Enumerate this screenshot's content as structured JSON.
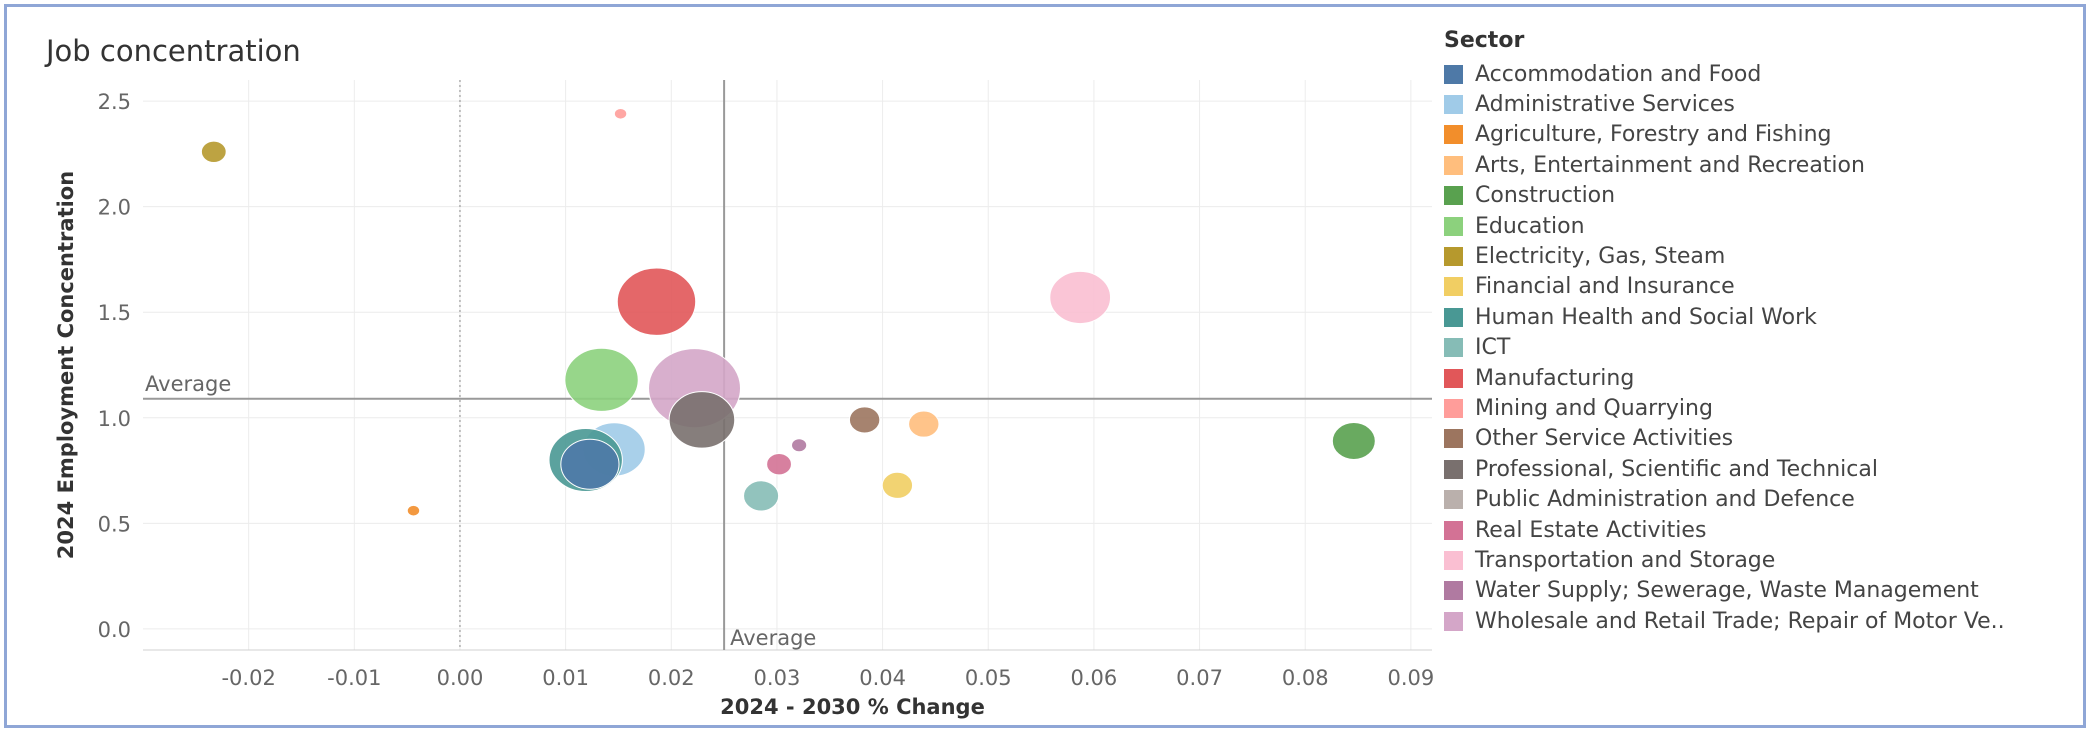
{
  "title": "Job concentration",
  "chart_data": {
    "type": "scatter",
    "xlabel": "2024 - 2030 % Change",
    "ylabel": "2024 Employment Concentration",
    "xlim": [
      -0.03,
      0.092
    ],
    "ylim": [
      -0.1,
      2.6
    ],
    "xticks": [
      -0.02,
      -0.01,
      0.0,
      0.01,
      0.02,
      0.03,
      0.04,
      0.05,
      0.06,
      0.07,
      0.08,
      0.09
    ],
    "xtick_labels": [
      "-0.02",
      "-0.01",
      "0.00",
      "0.01",
      "0.02",
      "0.03",
      "0.04",
      "0.05",
      "0.06",
      "0.07",
      "0.08",
      "0.09"
    ],
    "yticks": [
      0.0,
      0.5,
      1.0,
      1.5,
      2.0,
      2.5
    ],
    "ytick_labels": [
      "0.0",
      "0.5",
      "1.0",
      "1.5",
      "2.0",
      "2.5"
    ],
    "grid": true,
    "zero_line_x": 0.0,
    "average": {
      "x": 0.025,
      "y": 1.09,
      "label_x": "Average",
      "label_y": "Average"
    },
    "legend": {
      "title": "Sector",
      "placement": "right",
      "items": [
        {
          "name": "Accommodation and Food",
          "color": "#4e79a7"
        },
        {
          "name": "Administrative Services",
          "color": "#a0cbe8"
        },
        {
          "name": "Agriculture, Forestry and Fishing",
          "color": "#f28e2b"
        },
        {
          "name": "Arts, Entertainment and Recreation",
          "color": "#ffbe7d"
        },
        {
          "name": "Construction",
          "color": "#59a14f"
        },
        {
          "name": "Education",
          "color": "#8cd17d"
        },
        {
          "name": "Electricity, Gas, Steam",
          "color": "#b6992d"
        },
        {
          "name": "Financial and Insurance",
          "color": "#f1ce63"
        },
        {
          "name": "Human Health and Social Work",
          "color": "#499894"
        },
        {
          "name": "ICT",
          "color": "#86bcb6"
        },
        {
          "name": "Manufacturing",
          "color": "#e15759"
        },
        {
          "name": "Mining and Quarrying",
          "color": "#ff9d9a"
        },
        {
          "name": "Other Service Activities",
          "color": "#9c755f"
        },
        {
          "name": "Professional, Scientific and Technical",
          "color": "#79706e"
        },
        {
          "name": "Public Administration and Defence",
          "color": "#bab0ac"
        },
        {
          "name": "Real Estate Activities",
          "color": "#d37295"
        },
        {
          "name": "Transportation and Storage",
          "color": "#fabfd2"
        },
        {
          "name": "Water Supply; Sewerage, Waste Management",
          "color": "#b07aa1"
        },
        {
          "name": "Wholesale and Retail Trade; Repair of Motor Ve.."
        }
      ]
    },
    "points": [
      {
        "sector": "Mining and Quarrying",
        "x": 0.0152,
        "y": 2.44,
        "size": 1,
        "color": "#ff9d9a"
      },
      {
        "sector": "Electricity, Gas, Steam",
        "x": -0.0233,
        "y": 2.26,
        "size": 4,
        "color": "#b6992d"
      },
      {
        "sector": "Manufacturing",
        "x": 0.0186,
        "y": 1.55,
        "size": 40,
        "color": "#e15759"
      },
      {
        "sector": "Transportation and Storage",
        "x": 0.0587,
        "y": 1.57,
        "size": 24,
        "color": "#fabfd2"
      },
      {
        "sector": "Education",
        "x": 0.0134,
        "y": 1.18,
        "size": 35,
        "color": "#8cd17d"
      },
      {
        "sector": "Wholesale and Retail Trade; Repair of Motor Ve..",
        "x": 0.0222,
        "y": 1.14,
        "size": 55,
        "color": "#d4a6c8"
      },
      {
        "sector": "Professional, Scientific and Technical",
        "x": 0.0229,
        "y": 0.99,
        "size": 28,
        "color": "#79706e"
      },
      {
        "sector": "Other Service Activities",
        "x": 0.0383,
        "y": 0.99,
        "size": 6,
        "color": "#9c755f"
      },
      {
        "sector": "Arts, Entertainment and Recreation",
        "x": 0.0439,
        "y": 0.97,
        "size": 6,
        "color": "#ffbe7d"
      },
      {
        "sector": "Construction",
        "x": 0.0846,
        "y": 0.89,
        "size": 12,
        "color": "#59a14f"
      },
      {
        "sector": "Administrative Services",
        "x": 0.0146,
        "y": 0.85,
        "size": 25,
        "color": "#a0cbe8"
      },
      {
        "sector": "Water Supply; Sewerage, Waste Management",
        "x": 0.0321,
        "y": 0.87,
        "size": 1.5,
        "color": "#b07aa1"
      },
      {
        "sector": "Human Health and Social Work",
        "x": 0.0119,
        "y": 0.8,
        "size": 35,
        "color": "#499894"
      },
      {
        "sector": "Accommodation and Food",
        "x": 0.0123,
        "y": 0.78,
        "size": 22,
        "color": "#4e79a7"
      },
      {
        "sector": "Real Estate Activities",
        "x": 0.0302,
        "y": 0.78,
        "size": 4,
        "color": "#d37295"
      },
      {
        "sector": "Financial and Insurance",
        "x": 0.0414,
        "y": 0.68,
        "size": 6,
        "color": "#f1ce63"
      },
      {
        "sector": "ICT",
        "x": 0.0285,
        "y": 0.63,
        "size": 8,
        "color": "#86bcb6"
      },
      {
        "sector": "Agriculture, Forestry and Fishing",
        "x": -0.0044,
        "y": 0.56,
        "size": 1,
        "color": "#f28e2b"
      }
    ]
  }
}
